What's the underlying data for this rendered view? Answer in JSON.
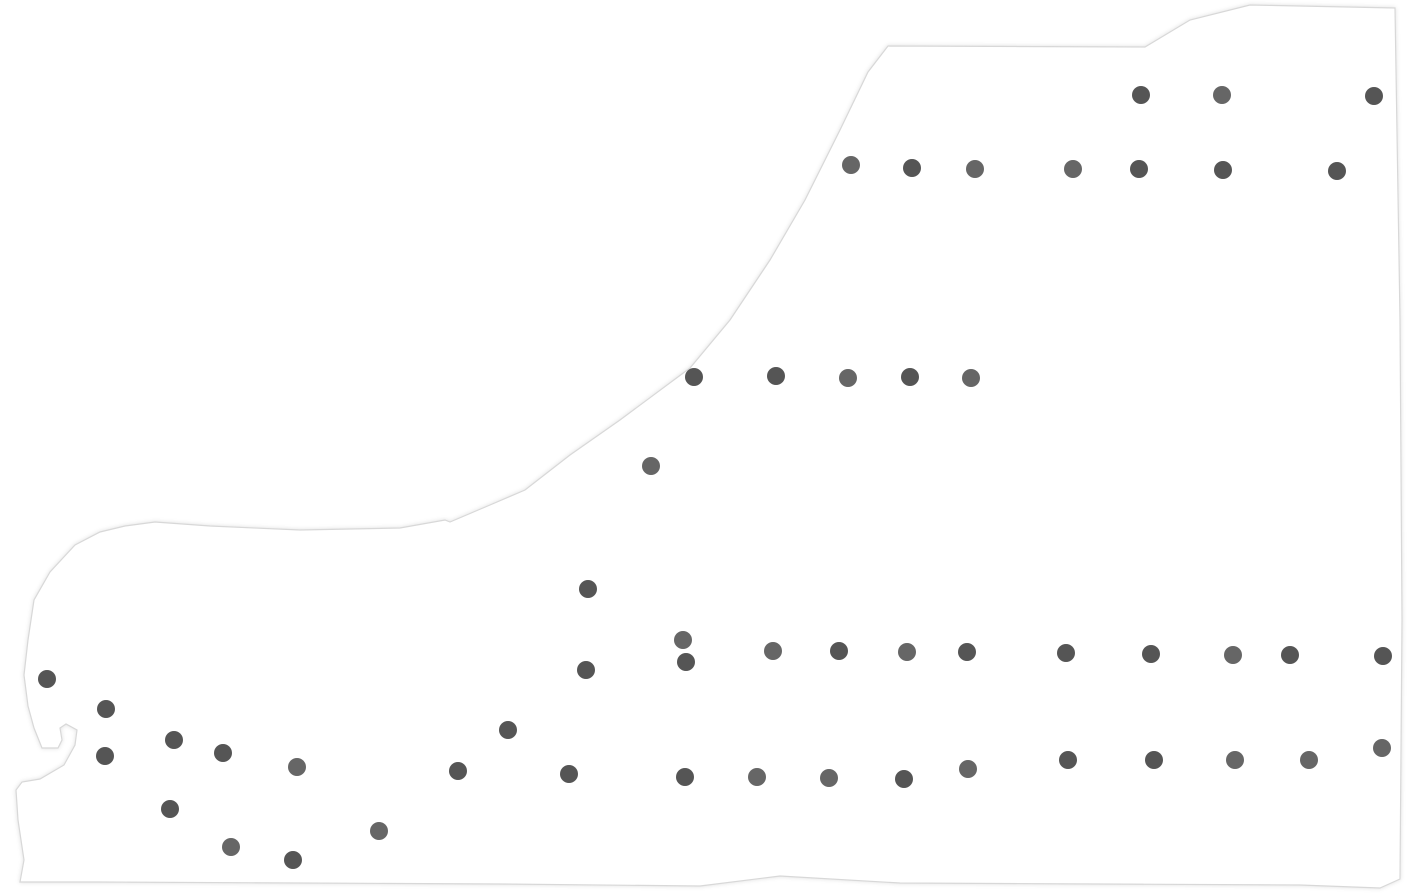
{
  "map": {
    "background_color": "#ffffff",
    "region_fill": "#ffffff",
    "region_stroke": "#d8d8d8",
    "marker_colors": {
      "dark": "#555555",
      "medium": "#666666"
    },
    "marker_count": 53,
    "markers_labeled": false
  }
}
